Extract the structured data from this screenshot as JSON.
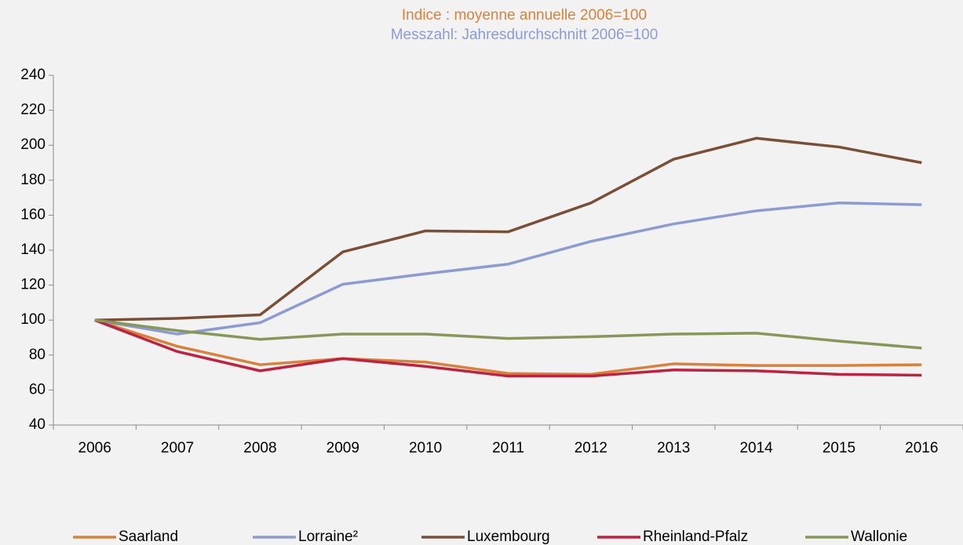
{
  "chart_data": {
    "type": "line",
    "title": "Indice : moyenne annuelle 2006=100",
    "subtitle": "Messzahl: Jahresdurchschnitt 2006=100",
    "title_color": "#d9813b",
    "subtitle_color": "#8c9bd3",
    "categories": [
      "2006",
      "2007",
      "2008",
      "2009",
      "2010",
      "2011",
      "2012",
      "2013",
      "2014",
      "2015",
      "2016"
    ],
    "series": [
      {
        "name": "Saarland",
        "color": "#d9813b",
        "values": [
          100,
          85,
          74.5,
          78,
          76,
          69.5,
          69,
          75,
          74,
          74,
          74.5
        ]
      },
      {
        "name": "Lorraine²",
        "color": "#8c9bd3",
        "values": [
          100,
          92,
          98.5,
          120.5,
          126.5,
          132,
          145,
          155,
          162.5,
          167,
          166
        ]
      },
      {
        "name": "Luxembourg",
        "color": "#7b4f35",
        "values": [
          100,
          101,
          103,
          139,
          151,
          150.5,
          167,
          192,
          204,
          199,
          190
        ]
      },
      {
        "name": "Rheinland-Pfalz",
        "color": "#c0213f",
        "values": [
          100,
          82,
          71,
          78,
          73.5,
          68,
          68,
          71.5,
          71,
          69,
          68.5
        ]
      },
      {
        "name": "Wallonie",
        "color": "#87975a",
        "values": [
          100,
          94,
          89,
          92,
          92,
          89.5,
          90.5,
          92,
          92.5,
          88,
          84
        ]
      }
    ],
    "ylim": [
      40,
      240
    ],
    "yticks": [
      40,
      60,
      80,
      100,
      120,
      140,
      160,
      180,
      200,
      220,
      240
    ],
    "grid": false,
    "legend": "bottom"
  }
}
